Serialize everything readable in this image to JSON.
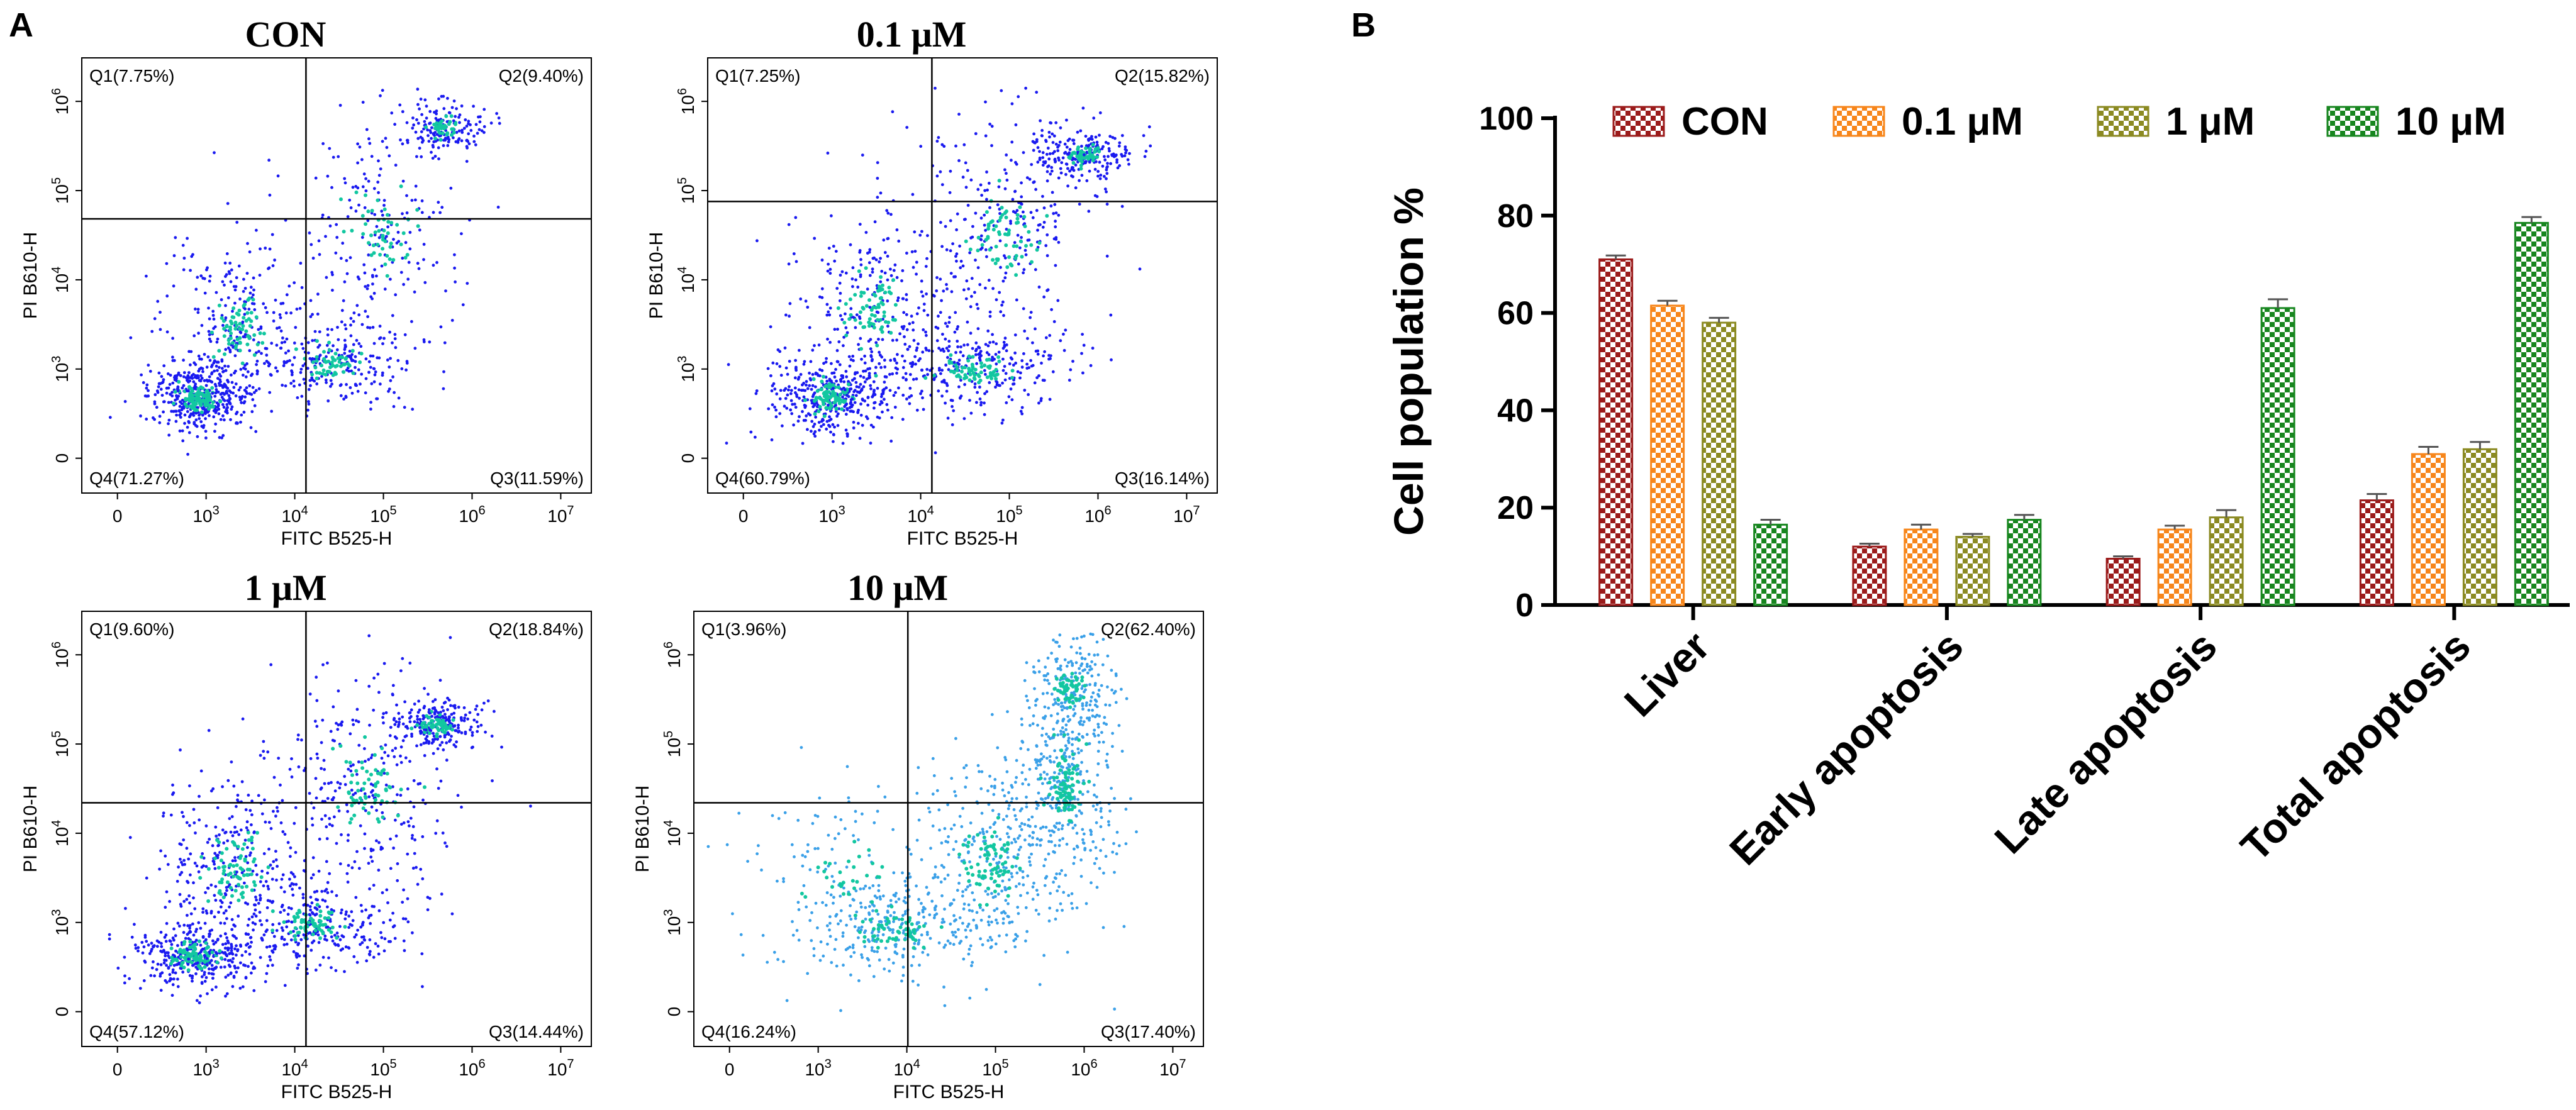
{
  "panel_a_letter": "A",
  "panel_b_letter": "B",
  "flow_panels": [
    {
      "title": "CON",
      "q1": "Q1(7.75%)",
      "q2": "Q2(9.40%)",
      "q3": "Q3(11.59%)",
      "q4": "Q4(71.27%)",
      "ylabel": "PI B610-H",
      "xlabel": "FITC B525-H"
    },
    {
      "title": "0.1 μM",
      "q1": "Q1(7.25%)",
      "q2": "Q2(15.82%)",
      "q3": "Q3(16.14%)",
      "q4": "Q4(60.79%)",
      "ylabel": "PI B610-H",
      "xlabel": "FITC B525-H"
    },
    {
      "title": "1 μM",
      "q1": "Q1(9.60%)",
      "q2": "Q2(18.84%)",
      "q3": "Q3(14.44%)",
      "q4": "Q4(57.12%)",
      "ylabel": "PI B610-H",
      "xlabel": "FITC B525-H"
    },
    {
      "title": "10 μM",
      "q1": "Q1(3.96%)",
      "q2": "Q2(62.40%)",
      "q3": "Q3(17.40%)",
      "q4": "Q4(16.24%)",
      "ylabel": "PI B610-H",
      "xlabel": "FITC B525-H"
    }
  ],
  "flow_x_ticks": [
    {
      "base": "0",
      "exp": ""
    },
    {
      "base": "10",
      "exp": "3"
    },
    {
      "base": "10",
      "exp": "4"
    },
    {
      "base": "10",
      "exp": "5"
    },
    {
      "base": "10",
      "exp": "6"
    },
    {
      "base": "10",
      "exp": "7"
    }
  ],
  "flow_y_ticks": [
    {
      "base": "0",
      "exp": ""
    },
    {
      "base": "10",
      "exp": "3"
    },
    {
      "base": "10",
      "exp": "4"
    },
    {
      "base": "10",
      "exp": "5"
    },
    {
      "base": "10",
      "exp": "6"
    }
  ],
  "colors": {
    "CON": "#9b1b1b",
    "0.1 μM": "#f7861b",
    "1 μM": "#8b8a22",
    "10 μM": "#17861f",
    "dots_dark": "#1a1af0",
    "dots_light": "#3aa0e8"
  },
  "chart_data": {
    "type": "bar",
    "ylabel": "Cell population %",
    "xlabel": "",
    "ylim": [
      0,
      100
    ],
    "yticks": [
      "0",
      "20",
      "40",
      "60",
      "80",
      "100"
    ],
    "legend_position": "top",
    "categories": [
      "Liver",
      "Early apoptosis",
      "Late apoptosis",
      "Total apoptosis"
    ],
    "series": [
      {
        "name": "CON",
        "values": [
          71,
          12,
          9.5,
          21.5
        ],
        "errors": [
          0.8,
          0.6,
          0.5,
          1.3
        ]
      },
      {
        "name": "0.1 μM",
        "values": [
          61.5,
          15.5,
          15.5,
          31
        ],
        "errors": [
          1.0,
          1.0,
          0.8,
          1.5
        ]
      },
      {
        "name": "1 μM",
        "values": [
          58,
          14,
          18,
          32
        ],
        "errors": [
          1.0,
          0.6,
          1.5,
          1.5
        ]
      },
      {
        "name": "10 μM",
        "values": [
          16.5,
          17.5,
          61,
          78.5
        ],
        "errors": [
          1.0,
          1.0,
          1.8,
          1.2
        ]
      }
    ]
  }
}
